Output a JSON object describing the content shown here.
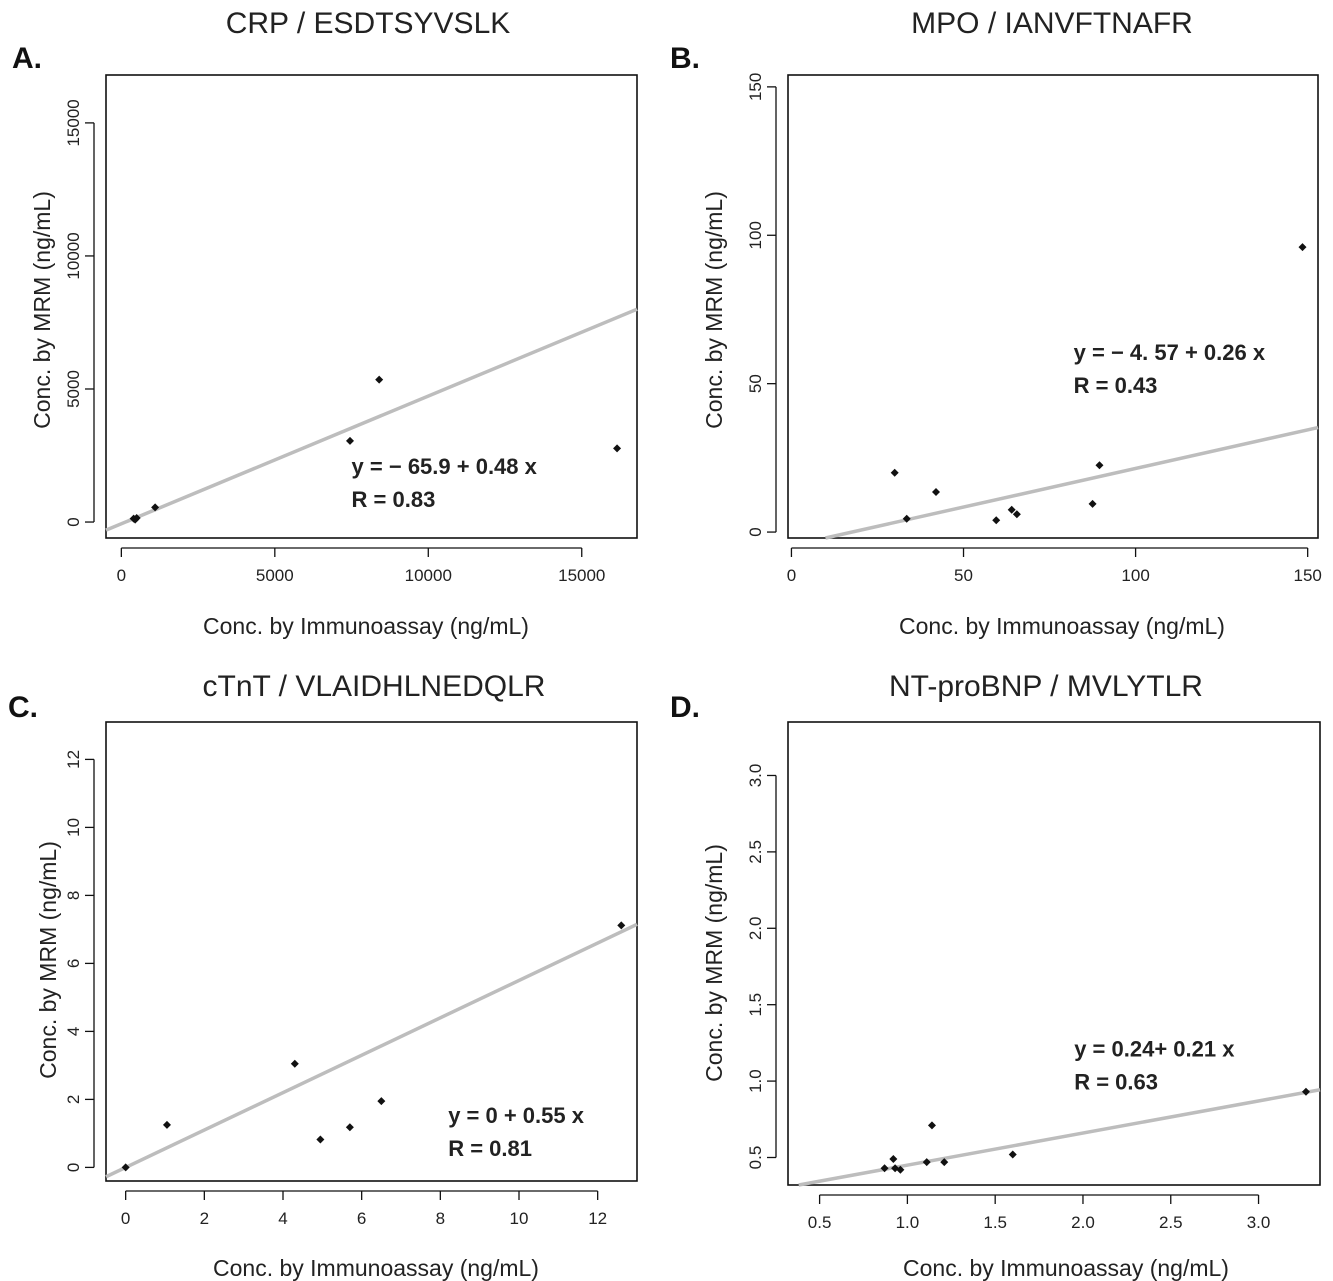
{
  "chart_data": [
    {
      "type": "scatter",
      "panel_letter": "A.",
      "title": "CRP / ESDTSYVSLK",
      "xlabel": "Conc. by Immunoassay (ng/mL)",
      "ylabel": "Conc. by MRM (ng/mL)",
      "xlim": [
        -500,
        16800
      ],
      "ylim": [
        -600,
        16800
      ],
      "xticks": [
        0,
        5000,
        10000,
        15000
      ],
      "yticks": [
        0,
        5000,
        10000,
        15000
      ],
      "xtick_labels": [
        "0",
        "5000",
        "10000",
        "15000"
      ],
      "ytick_labels": [
        "0",
        "5000",
        "10000",
        "15000"
      ],
      "points": [
        {
          "x": 400,
          "y": 130
        },
        {
          "x": 450,
          "y": 90
        },
        {
          "x": 500,
          "y": 150
        },
        {
          "x": 1100,
          "y": 550
        },
        {
          "x": 7450,
          "y": 3050
        },
        {
          "x": 8400,
          "y": 5350
        },
        {
          "x": 16150,
          "y": 2770
        }
      ],
      "fit": {
        "intercept": -65.9,
        "slope": 0.48
      },
      "equation": "y = − 65.9 + 0.48 x",
      "r_label": "R = 0.83",
      "ann_pos": [
        7500,
        1800
      ]
    },
    {
      "type": "scatter",
      "panel_letter": "B.",
      "title": "MPO / IANVFTNAFR",
      "xlabel": "Conc. by Immunoassay (ng/mL)",
      "ylabel": "Conc. by MRM (ng/mL)",
      "xlim": [
        -1,
        153
      ],
      "ylim": [
        -2,
        154
      ],
      "xticks": [
        0,
        50,
        100,
        150
      ],
      "yticks": [
        0,
        50,
        100,
        150
      ],
      "xtick_labels": [
        "0",
        "50",
        "100",
        "150"
      ],
      "ytick_labels": [
        "0",
        "50",
        "100",
        "150"
      ],
      "points": [
        {
          "x": 30,
          "y": 20
        },
        {
          "x": 33.5,
          "y": 4.5
        },
        {
          "x": 42,
          "y": 13.5
        },
        {
          "x": 59.5,
          "y": 4
        },
        {
          "x": 64,
          "y": 7.5
        },
        {
          "x": 65.5,
          "y": 6
        },
        {
          "x": 87.5,
          "y": 9.5
        },
        {
          "x": 89.5,
          "y": 22.5
        },
        {
          "x": 148.5,
          "y": 96
        }
      ],
      "fit": {
        "intercept": -4.57,
        "slope": 0.26
      },
      "equation": "y = − 4. 57 + 0.26 x",
      "r_label": "R = 0.43",
      "ann_pos": [
        82,
        58
      ]
    },
    {
      "type": "scatter",
      "panel_letter": "C.",
      "title": "cTnT / VLAIDHLNEDQLR",
      "xlabel": "Conc. by Immunoassay (ng/mL)",
      "ylabel": "Conc. by MRM (ng/mL)",
      "xlim": [
        -0.5,
        13
      ],
      "ylim": [
        -0.4,
        13.1
      ],
      "xticks": [
        0,
        2,
        4,
        6,
        8,
        10,
        12
      ],
      "yticks": [
        0,
        2,
        4,
        6,
        8,
        10,
        12
      ],
      "xtick_labels": [
        "0",
        "2",
        "4",
        "6",
        "8",
        "10",
        "12"
      ],
      "ytick_labels": [
        "0",
        "2",
        "4",
        "6",
        "8",
        "10",
        "12"
      ],
      "points": [
        {
          "x": 0,
          "y": 0
        },
        {
          "x": 1.05,
          "y": 1.25
        },
        {
          "x": 4.3,
          "y": 3.05
        },
        {
          "x": 4.95,
          "y": 0.82
        },
        {
          "x": 5.7,
          "y": 1.18
        },
        {
          "x": 6.5,
          "y": 1.95
        },
        {
          "x": 12.6,
          "y": 7.12
        }
      ],
      "fit": {
        "intercept": 0,
        "slope": 0.55
      },
      "equation": "y = 0 + 0.55 x",
      "r_label": "R = 0.81",
      "ann_pos": [
        8.2,
        1.3
      ]
    },
    {
      "type": "scatter",
      "panel_letter": "D.",
      "title": "NT-proBNP / MVLYTLR",
      "xlabel": "Conc. by Immunoassay (ng/mL)",
      "ylabel": "Conc. by MRM (ng/mL)",
      "xlim": [
        0.32,
        3.35
      ],
      "ylim": [
        0.32,
        3.35
      ],
      "xticks": [
        0.5,
        1.0,
        1.5,
        2.0,
        2.5,
        3.0
      ],
      "yticks": [
        0.5,
        1.0,
        1.5,
        2.0,
        2.5,
        3.0
      ],
      "xtick_labels": [
        "0.5",
        "1.0",
        "1.5",
        "2.0",
        "2.5",
        "3.0"
      ],
      "ytick_labels": [
        "0.5",
        "1.0",
        "1.5",
        "2.0",
        "2.5",
        "3.0"
      ],
      "points": [
        {
          "x": 0.87,
          "y": 0.43
        },
        {
          "x": 0.92,
          "y": 0.49
        },
        {
          "x": 0.93,
          "y": 0.43
        },
        {
          "x": 0.96,
          "y": 0.42
        },
        {
          "x": 1.11,
          "y": 0.47
        },
        {
          "x": 1.14,
          "y": 0.71
        },
        {
          "x": 1.21,
          "y": 0.47
        },
        {
          "x": 1.6,
          "y": 0.52
        },
        {
          "x": 3.27,
          "y": 0.93
        }
      ],
      "fit": {
        "intercept": 0.24,
        "slope": 0.21
      },
      "equation": "y = 0.24+ 0.21 x",
      "r_label": "R = 0.63",
      "ann_pos": [
        1.95,
        1.16
      ]
    }
  ]
}
